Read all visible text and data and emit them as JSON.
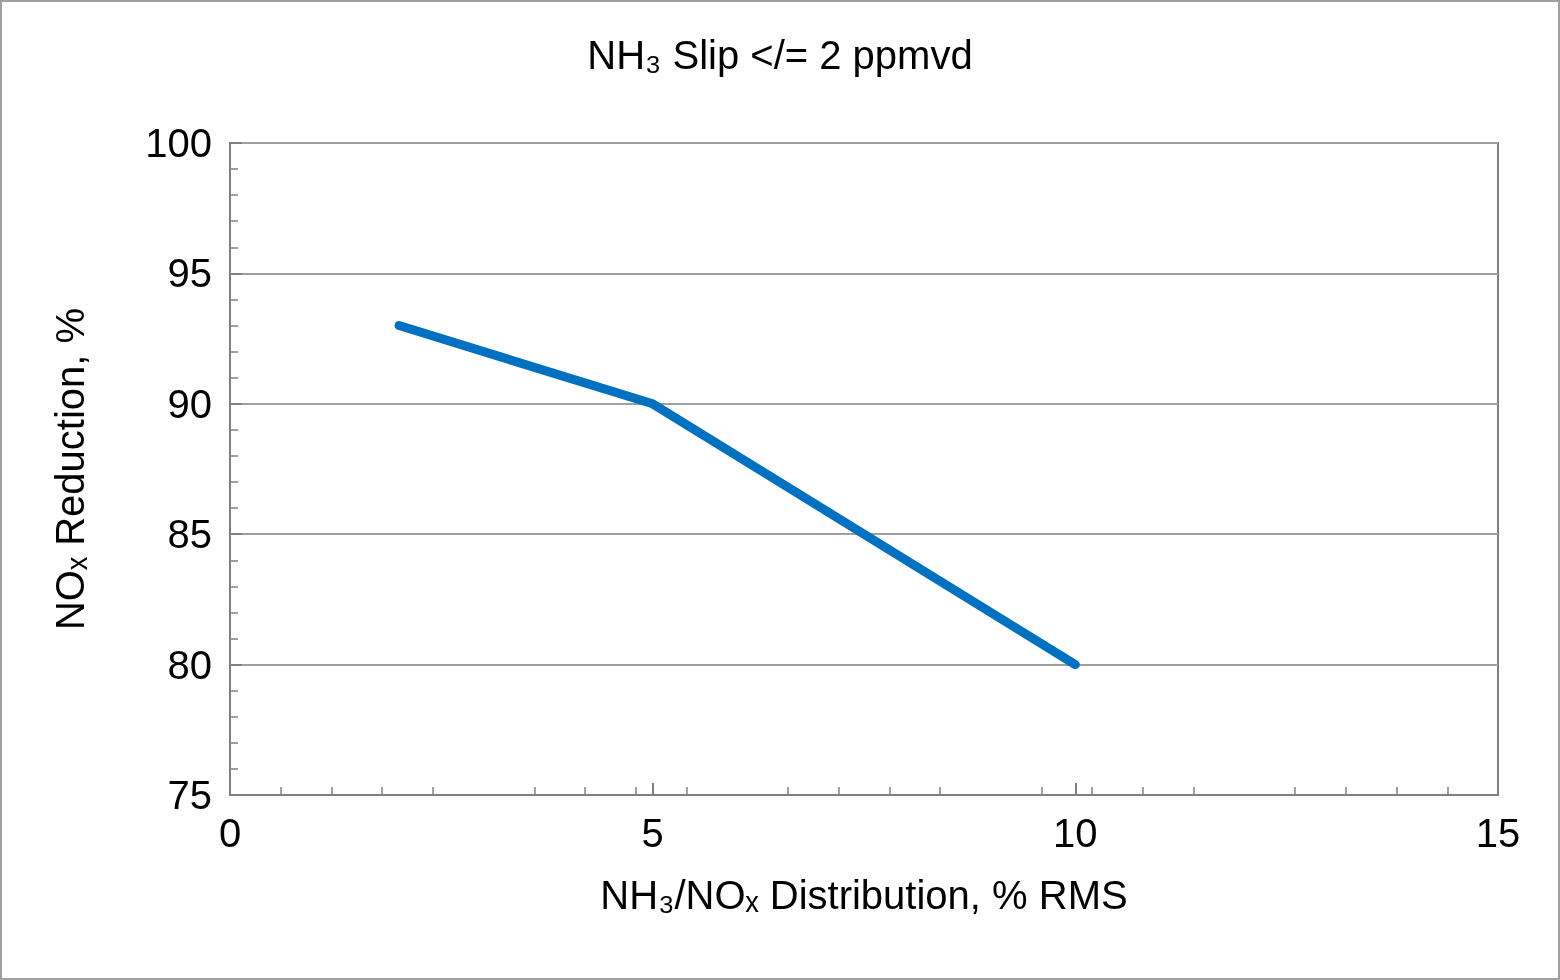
{
  "chart_data": {
    "type": "line",
    "title": "NH₃ Slip </= 2 ppmvd",
    "xlabel": "NH₃/NOₓ Distribution, % RMS",
    "ylabel": "NOₓ Reduction, %",
    "x": [
      2,
      5,
      10
    ],
    "series": [
      {
        "color": "#0070c0",
        "values": [
          93,
          90,
          80
        ]
      }
    ],
    "xlim": [
      0,
      15
    ],
    "xticks": [
      0,
      5,
      10,
      15
    ],
    "ylim": [
      75,
      100
    ],
    "yticks": [
      75,
      80,
      85,
      90,
      95,
      100
    ],
    "grid": "y",
    "marker": "none",
    "line_style": "solid"
  }
}
